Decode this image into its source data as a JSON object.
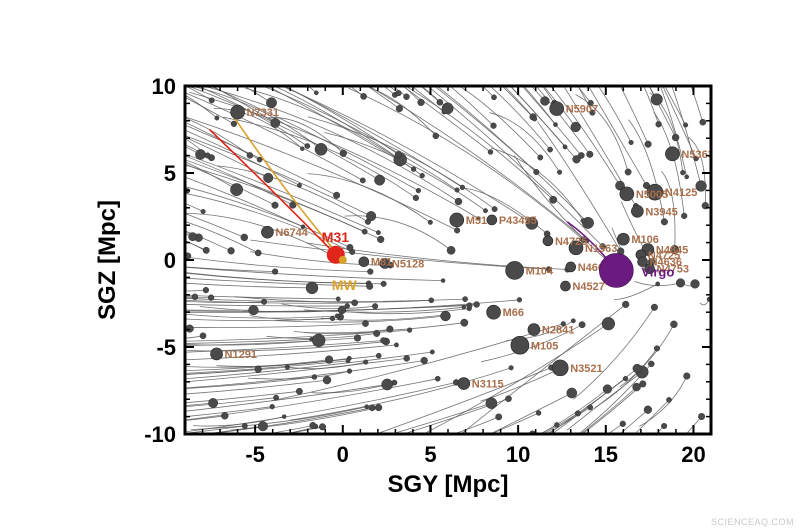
{
  "chart_data": {
    "type": "scatter",
    "title": "",
    "xlabel": "SGY [Mpc]",
    "ylabel": "SGZ [Mpc]",
    "xlim": [
      -9,
      21
    ],
    "ylim": [
      -10,
      10
    ],
    "xticks": [
      -5,
      0,
      5,
      10,
      15,
      20
    ],
    "yticks": [
      -10,
      -5,
      0,
      5,
      10
    ],
    "grid": false,
    "legend": "none",
    "colors": {
      "galaxy": "#4a4a4a",
      "trajectory": "#5a5a5a",
      "label": "#a86f4c",
      "mw": "#d9a22a",
      "m31": "#e0261c",
      "virgo": "#6b1a80"
    },
    "labeled_galaxies": [
      {
        "name": "N7331",
        "x": -6.0,
        "y": 8.5,
        "size": 7
      },
      {
        "name": "N5907",
        "x": 12.2,
        "y": 8.7,
        "size": 7
      },
      {
        "name": "N5363",
        "x": 18.8,
        "y": 6.1,
        "size": 7
      },
      {
        "name": "N5005",
        "x": 16.2,
        "y": 3.8,
        "size": 7
      },
      {
        "name": "N4125",
        "x": 17.8,
        "y": 3.9,
        "size": 8
      },
      {
        "name": "N3945",
        "x": 16.8,
        "y": 2.8,
        "size": 6
      },
      {
        "name": "M51",
        "x": 6.5,
        "y": 2.3,
        "size": 7
      },
      {
        "name": "P43495",
        "x": 8.5,
        "y": 2.3,
        "size": 5
      },
      {
        "name": "N6744",
        "x": -4.3,
        "y": 1.6,
        "size": 6
      },
      {
        "name": "N4725",
        "x": 11.7,
        "y": 1.1,
        "size": 5
      },
      {
        "name": "M106",
        "x": 16.0,
        "y": 1.2,
        "size": 6
      },
      {
        "name": "N1563",
        "x": 13.3,
        "y": 0.7,
        "size": 7
      },
      {
        "name": "N4845",
        "x": 17.4,
        "y": 0.6,
        "size": 6
      },
      {
        "name": "N4725",
        "x": 17.0,
        "y": 0.3,
        "size": 5
      },
      {
        "name": "N4636",
        "x": 17.1,
        "y": -0.1,
        "size": 5
      },
      {
        "name": "N4753",
        "x": 17.5,
        "y": -0.5,
        "size": 5
      },
      {
        "name": "M104",
        "x": 9.8,
        "y": -0.6,
        "size": 9
      },
      {
        "name": "N4666",
        "x": 13.0,
        "y": -0.4,
        "size": 5
      },
      {
        "name": "N5128",
        "x": 2.4,
        "y": -0.2,
        "size": 5
      },
      {
        "name": "M81",
        "x": 1.2,
        "y": -0.1,
        "size": 5
      },
      {
        "name": "N4527",
        "x": 12.7,
        "y": -1.5,
        "size": 5
      },
      {
        "name": "M66",
        "x": 8.6,
        "y": -3.0,
        "size": 7
      },
      {
        "name": "N2841",
        "x": 10.9,
        "y": -4.0,
        "size": 6
      },
      {
        "name": "M105",
        "x": 10.1,
        "y": -4.9,
        "size": 9
      },
      {
        "name": "N1291",
        "x": -7.2,
        "y": -5.4,
        "size": 6
      },
      {
        "name": "N3521",
        "x": 12.4,
        "y": -6.2,
        "size": 8
      },
      {
        "name": "N3115",
        "x": 6.9,
        "y": -7.1,
        "size": 6
      }
    ],
    "special_points": [
      {
        "name": "M31",
        "x": -0.4,
        "y": 0.3,
        "size": 9,
        "color": "#e0261c"
      },
      {
        "name": "MW",
        "x": 0.0,
        "y": 0.0,
        "size": 4,
        "color": "#d9a22a"
      },
      {
        "name": "Virgo",
        "x": 15.6,
        "y": -0.6,
        "size": 17,
        "color": "#6b1a80"
      }
    ]
  },
  "watermark": "SCIENCEAQ.COM"
}
